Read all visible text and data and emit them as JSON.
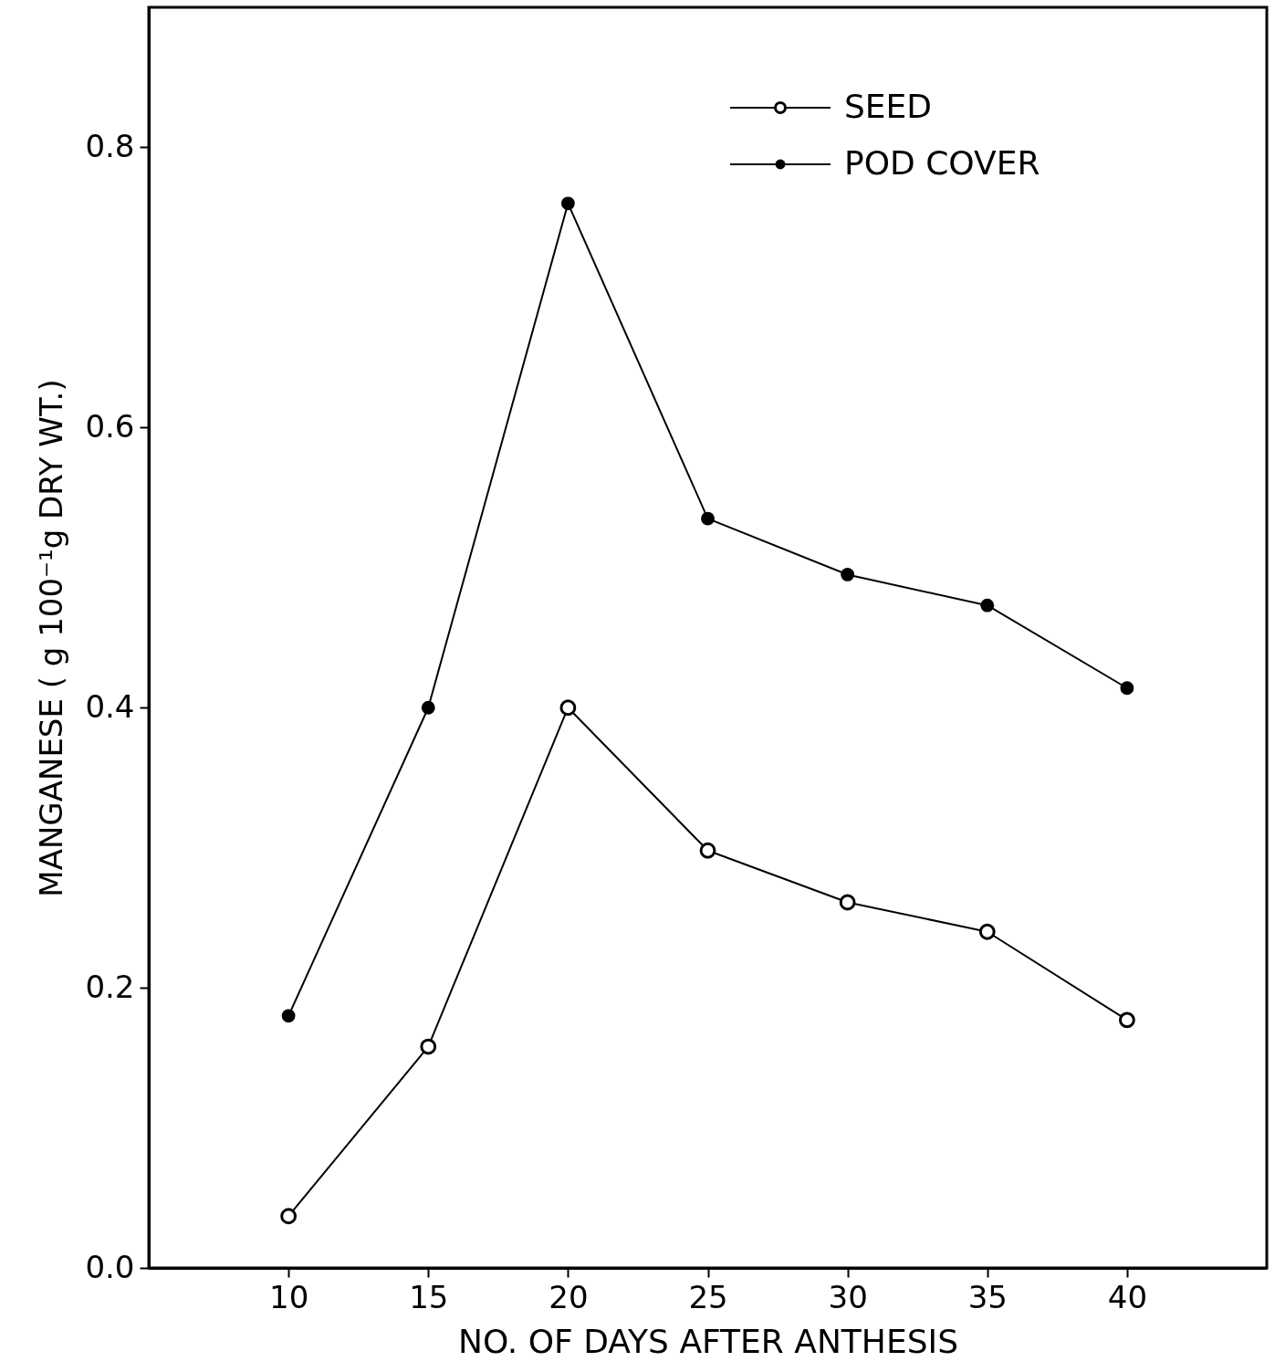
{
  "chart_data": {
    "type": "line",
    "xlabel": "NO. OF DAYS AFTER ANTHESIS",
    "ylabel": "MANGANESE ( g 100⁻¹g DRY WT.)",
    "x": [
      10,
      15,
      20,
      25,
      30,
      35,
      40
    ],
    "series": [
      {
        "name": "SEED",
        "color": "#000000",
        "values": [
          0.037,
          0.158,
          0.4,
          0.298,
          0.261,
          0.24,
          0.177
        ]
      },
      {
        "name": "POD COVER",
        "color": "#000000",
        "values": [
          0.18,
          0.4,
          0.76,
          0.535,
          0.495,
          0.473,
          0.414
        ]
      }
    ],
    "xlim": [
      5,
      45
    ],
    "xticks": [
      10,
      15,
      20,
      25,
      30,
      35,
      40
    ],
    "ylim": [
      0,
      0.9
    ],
    "yticks": [
      {
        "value": 0,
        "label": "0.0"
      },
      0.2,
      0.4,
      0.6,
      0.8
    ],
    "marker": "circle",
    "line_style": "solid",
    "grid": false,
    "legend": "top right"
  }
}
